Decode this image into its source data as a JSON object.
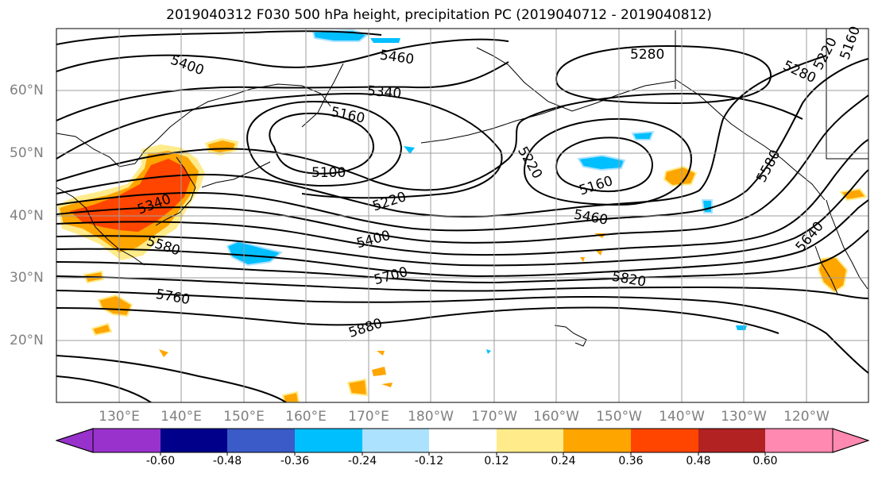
{
  "title": "2019040312 F030 500 hPa height, precipitation PC (2019040712 - 2019040812)",
  "lat_labels": [
    "60°N",
    "50°N",
    "40°N",
    "30°N",
    "20°N"
  ],
  "lon_labels": [
    "130°E",
    "140°E",
    "150°E",
    "160°E",
    "170°E",
    "180°W",
    "170°W",
    "160°W",
    "150°W",
    "140°W",
    "130°W",
    "120°W"
  ],
  "contour_labels": [
    "5400",
    "5460",
    "5280",
    "5220",
    "5160",
    "5340",
    "5160",
    "5100",
    "5280",
    "5220",
    "5160",
    "5580",
    "5220",
    "5340",
    "5580",
    "5460",
    "5400",
    "5640",
    "5700",
    "5820",
    "5760",
    "5880"
  ],
  "colorbar": {
    "ticks": [
      "-0.60",
      "-0.48",
      "-0.36",
      "-0.24",
      "-0.12",
      "0.12",
      "0.24",
      "0.36",
      "0.48",
      "0.60"
    ],
    "colors": [
      "#9932CC",
      "#00008B",
      "#3A5BC8",
      "#00BFFF",
      "#ADE2FF",
      "#FFFFFF",
      "#FFEB8A",
      "#FFA500",
      "#FF4500",
      "#B22222",
      "#FF89B0"
    ]
  }
}
